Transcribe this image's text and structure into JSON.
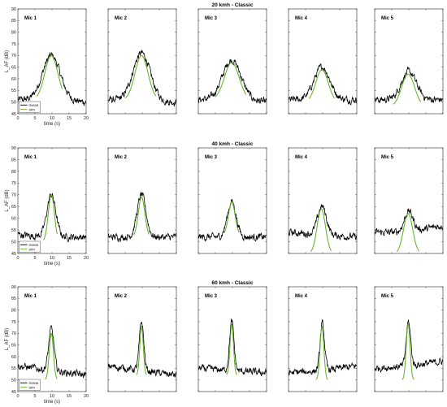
{
  "chart_data": [
    {
      "type": "line",
      "title": "20 kmh - Classic",
      "ylabel": "L_AF (dB)",
      "xlabel": "time (s)",
      "xlim": [
        0,
        20
      ],
      "ylim": [
        45,
        90
      ],
      "xticks": [
        0,
        5,
        10,
        15,
        20
      ],
      "yticks": [
        45,
        50,
        55,
        60,
        65,
        70,
        75,
        80,
        85,
        90
      ],
      "legend": {
        "entries": [
          "meas",
          "sim"
        ],
        "placement": "bottom-left"
      },
      "subplots": [
        {
          "label": "Mic 1",
          "series": [
            {
              "name": "meas",
              "baseline": [
                51,
                51,
                50
              ],
              "peak": 70,
              "peak_t": 9.8,
              "width": 4.0
            },
            {
              "name": "sim",
              "t_range": [
                5.5,
                13
              ],
              "peak": 70,
              "peak_t": 9.8,
              "width": 3.4,
              "floor": 51
            }
          ]
        },
        {
          "label": "Mic 2",
          "series": [
            {
              "name": "meas",
              "baseline": [
                51,
                50,
                50
              ],
              "peak": 71,
              "peak_t": 9.8,
              "width": 4.0
            },
            {
              "name": "sim",
              "t_range": [
                5,
                14
              ],
              "peak": 70,
              "peak_t": 9.8,
              "width": 3.4,
              "floor": 51
            }
          ]
        },
        {
          "label": "Mic 3",
          "series": [
            {
              "name": "meas",
              "baseline": [
                51,
                51,
                50
              ],
              "peak": 68,
              "peak_t": 9.8,
              "width": 4.2
            },
            {
              "name": "sim",
              "t_range": [
                5,
                14
              ],
              "peak": 67,
              "peak_t": 9.8,
              "width": 3.8,
              "floor": 51
            }
          ]
        },
        {
          "label": "Mic 4",
          "series": [
            {
              "name": "meas",
              "baseline": [
                51,
                51,
                51
              ],
              "peak": 65,
              "peak_t": 9.8,
              "width": 3.6
            },
            {
              "name": "sim",
              "t_range": [
                6,
                13.5
              ],
              "peak": 64,
              "peak_t": 9.8,
              "width": 3.2,
              "floor": 50
            }
          ]
        },
        {
          "label": "Mic 5",
          "series": [
            {
              "name": "meas",
              "baseline": [
                51,
                51,
                51
              ],
              "peak": 63,
              "peak_t": 10.0,
              "width": 3.4
            },
            {
              "name": "sim",
              "t_range": [
                5.5,
                13.5
              ],
              "peak": 62,
              "peak_t": 9.8,
              "width": 3.4,
              "floor": 48
            }
          ]
        }
      ]
    },
    {
      "type": "line",
      "title": "40 kmh - Classic",
      "ylabel": "L_AF (dB)",
      "xlabel": "time (s)",
      "xlim": [
        0,
        20
      ],
      "ylim": [
        45,
        90
      ],
      "xticks": [
        0,
        5,
        10,
        15,
        20
      ],
      "yticks": [
        45,
        50,
        55,
        60,
        65,
        70,
        75,
        80,
        85,
        90
      ],
      "legend": {
        "entries": [
          "meas",
          "sim"
        ],
        "placement": "bottom-left"
      },
      "subplots": [
        {
          "label": "Mic 1",
          "series": [
            {
              "name": "meas",
              "baseline": [
                53,
                52,
                52
              ],
              "peak": 70,
              "peak_t": 9.8,
              "width": 2.0
            },
            {
              "name": "sim",
              "t_range": [
                7.5,
                11.5
              ],
              "peak": 70,
              "peak_t": 9.8,
              "width": 1.6,
              "floor": 50
            }
          ]
        },
        {
          "label": "Mic 2",
          "series": [
            {
              "name": "meas",
              "baseline": [
                52,
                52,
                52
              ],
              "peak": 70,
              "peak_t": 9.8,
              "width": 2.0
            },
            {
              "name": "sim",
              "t_range": [
                7.5,
                12
              ],
              "peak": 69,
              "peak_t": 9.8,
              "width": 1.7,
              "floor": 52
            }
          ]
        },
        {
          "label": "Mic 3",
          "series": [
            {
              "name": "meas",
              "baseline": [
                52,
                52,
                52
              ],
              "peak": 67,
              "peak_t": 9.8,
              "width": 2.0
            },
            {
              "name": "sim",
              "t_range": [
                7.5,
                12
              ],
              "peak": 67,
              "peak_t": 9.8,
              "width": 1.7,
              "floor": 53
            }
          ]
        },
        {
          "label": "Mic 4",
          "series": [
            {
              "name": "meas",
              "baseline": [
                54,
                53,
                52
              ],
              "peak": 65,
              "peak_t": 9.8,
              "width": 2.0
            },
            {
              "name": "sim",
              "t_range": [
                6.5,
                12.5
              ],
              "peak": 64,
              "peak_t": 9.6,
              "width": 2.2,
              "floor": 45
            }
          ]
        },
        {
          "label": "Mic 5",
          "series": [
            {
              "name": "meas",
              "baseline": [
                54,
                54,
                57
              ],
              "peak": 63,
              "peak_t": 10.0,
              "width": 2.0
            },
            {
              "name": "sim",
              "t_range": [
                6.5,
                13
              ],
              "peak": 62,
              "peak_t": 9.8,
              "width": 2.4,
              "floor": 45
            }
          ]
        }
      ]
    },
    {
      "type": "line",
      "title": "60 kmh - Classic",
      "ylabel": "L_AF (dB)",
      "xlabel": "time (s)",
      "xlim": [
        0,
        20
      ],
      "ylim": [
        45,
        90
      ],
      "xticks": [
        0,
        5,
        10,
        15,
        20
      ],
      "yticks": [
        45,
        50,
        55,
        60,
        65,
        70,
        75,
        80,
        85,
        90
      ],
      "legend": {
        "entries": [
          "meas",
          "sim"
        ],
        "placement": "bottom-left"
      },
      "subplots": [
        {
          "label": "Mic 1",
          "series": [
            {
              "name": "meas",
              "baseline": [
                56,
                54,
                52
              ],
              "peak": 72,
              "peak_t": 9.8,
              "width": 1.2
            },
            {
              "name": "sim",
              "t_range": [
                8,
                11.5
              ],
              "peak": 70,
              "peak_t": 9.8,
              "width": 1.1,
              "floor": 50
            }
          ]
        },
        {
          "label": "Mic 2",
          "series": [
            {
              "name": "meas",
              "baseline": [
                56,
                54,
                52
              ],
              "peak": 75,
              "peak_t": 9.8,
              "width": 1.0
            },
            {
              "name": "sim",
              "t_range": [
                8.3,
                11.3
              ],
              "peak": 73,
              "peak_t": 9.8,
              "width": 0.9,
              "floor": 52
            }
          ]
        },
        {
          "label": "Mic 3",
          "series": [
            {
              "name": "meas",
              "baseline": [
                55,
                54,
                53
              ],
              "peak": 75,
              "peak_t": 9.8,
              "width": 1.0
            },
            {
              "name": "sim",
              "t_range": [
                8.3,
                11.3
              ],
              "peak": 74,
              "peak_t": 9.8,
              "width": 0.9,
              "floor": 52
            }
          ]
        },
        {
          "label": "Mic 4",
          "series": [
            {
              "name": "meas",
              "baseline": [
                53,
                54,
                56
              ],
              "peak": 74,
              "peak_t": 9.9,
              "width": 1.0
            },
            {
              "name": "sim",
              "t_range": [
                8,
                11.5
              ],
              "peak": 73,
              "peak_t": 9.8,
              "width": 1.0,
              "floor": 50
            }
          ]
        },
        {
          "label": "Mic 5",
          "series": [
            {
              "name": "meas",
              "baseline": [
                55,
                56,
                58
              ],
              "peak": 75,
              "peak_t": 9.9,
              "width": 1.0
            },
            {
              "name": "sim",
              "t_range": [
                8,
                11.5
              ],
              "peak": 74,
              "peak_t": 9.8,
              "width": 1.0,
              "floor": 50
            }
          ]
        }
      ]
    }
  ],
  "colors": {
    "meas": "#000000",
    "sim": "#5ab01e",
    "axis": "#262626"
  }
}
